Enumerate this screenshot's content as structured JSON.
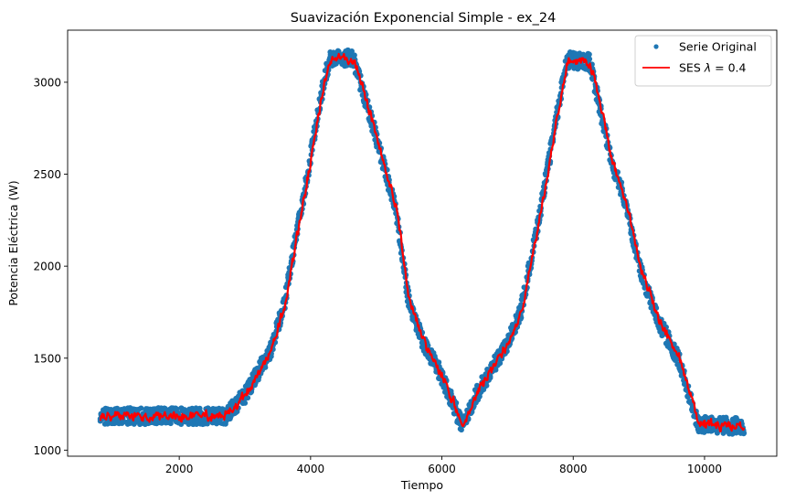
{
  "chart_data": {
    "type": "scatter",
    "title": "Suavización Exponencial Simple - ex_24",
    "xlabel": "Tiempo",
    "ylabel": "Potencia Eléctrica (W)",
    "xlim": [
      300,
      11100
    ],
    "ylim": [
      967,
      3283
    ],
    "xticks": [
      2000,
      4000,
      6000,
      8000,
      10000
    ],
    "yticks": [
      1000,
      1500,
      2000,
      2500,
      3000
    ],
    "grid": false,
    "legend_position": "top-right",
    "series": [
      {
        "name": "Serie Original",
        "kind": "scatter",
        "color": "#1f77b4",
        "noise_amplitude": 45,
        "profile_x": [
          800,
          2700,
          3000,
          3400,
          3600,
          3800,
          4000,
          4200,
          4300,
          4650,
          5000,
          5300,
          5500,
          5700,
          6000,
          6300,
          6600,
          7000,
          7200,
          7500,
          7900,
          8250,
          8600,
          8800,
          9000,
          9300,
          9600,
          9900,
          10600
        ],
        "profile_y": [
          1185,
          1185,
          1300,
          1550,
          1800,
          2200,
          2600,
          3000,
          3130,
          3130,
          2700,
          2300,
          1800,
          1600,
          1400,
          1140,
          1350,
          1580,
          1750,
          2300,
          3120,
          3110,
          2550,
          2350,
          2000,
          1700,
          1500,
          1140,
          1130
        ]
      },
      {
        "name": "SES λ = 0.4",
        "legend_label_prefix": "SES ",
        "legend_label_symbol": "λ",
        "legend_label_suffix": " = 0.4",
        "kind": "line",
        "color": "#ff0000",
        "noise_amplitude": 18
      }
    ]
  }
}
